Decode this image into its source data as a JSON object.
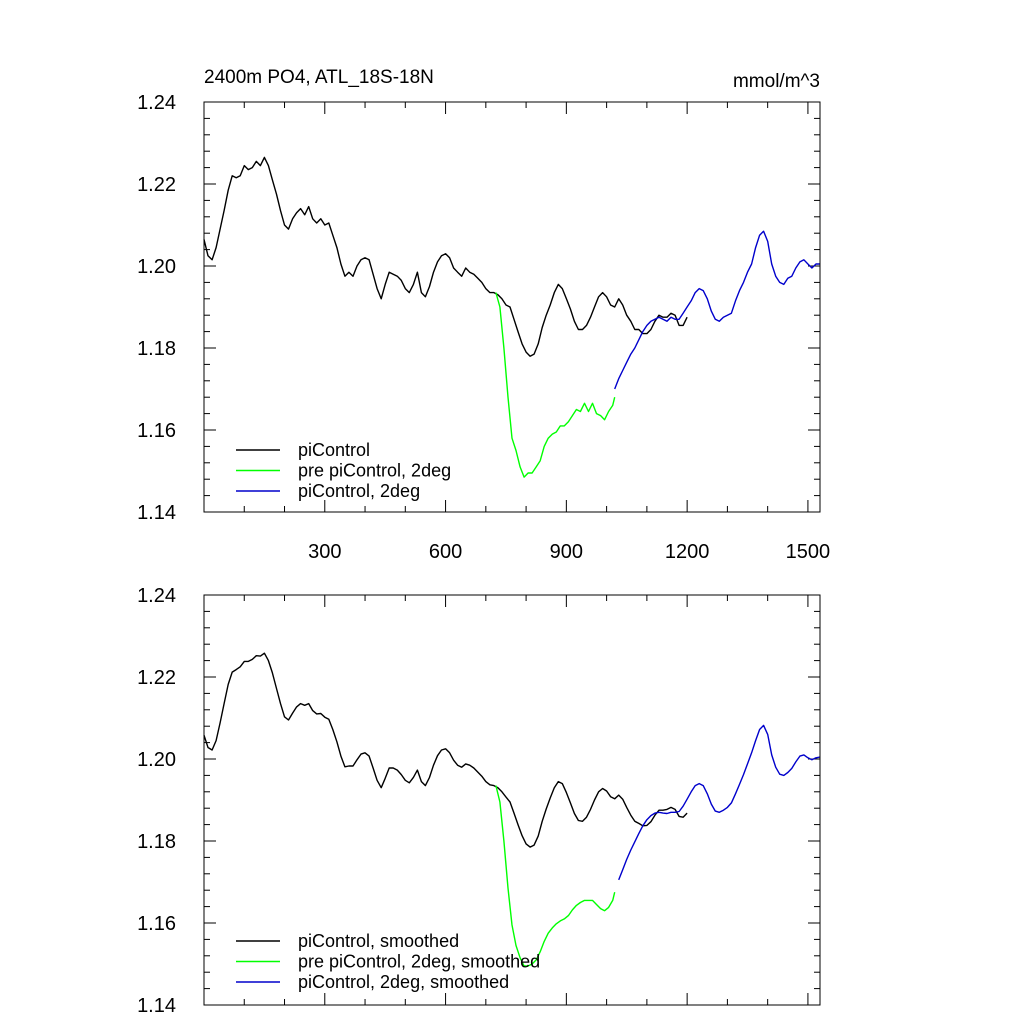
{
  "chart_data": [
    {
      "type": "line",
      "title": "2400m PO4, ATL_18S-18N",
      "units": "mmol/m^3",
      "xlim": [
        0,
        1530
      ],
      "ylim": [
        1.14,
        1.24
      ],
      "xticks": [
        300,
        600,
        900,
        1200,
        1500
      ],
      "xtick_labels": [
        "300",
        "600",
        "900",
        "1200",
        "1500"
      ],
      "yticks": [
        1.14,
        1.16,
        1.18,
        1.2,
        1.22,
        1.24
      ],
      "ytick_labels": [
        "1.14",
        "1.16",
        "1.18",
        "1.20",
        "1.22",
        "1.24"
      ],
      "grid": false,
      "legend_position": "bottom-left",
      "series": [
        {
          "name": "piControl",
          "color": "#000000",
          "x": [
            0,
            10,
            20,
            30,
            40,
            50,
            60,
            70,
            80,
            90,
            100,
            110,
            120,
            130,
            140,
            150,
            160,
            170,
            180,
            190,
            200,
            210,
            220,
            230,
            240,
            250,
            260,
            270,
            280,
            290,
            300,
            310,
            320,
            330,
            340,
            350,
            360,
            370,
            380,
            390,
            400,
            410,
            420,
            430,
            440,
            450,
            460,
            470,
            480,
            490,
            500,
            510,
            520,
            530,
            540,
            550,
            560,
            570,
            580,
            590,
            600,
            610,
            620,
            630,
            640,
            650,
            660,
            670,
            680,
            690,
            700,
            710,
            720,
            730,
            740,
            750,
            760,
            770,
            780,
            790,
            800,
            810,
            820,
            830,
            840,
            850,
            860,
            870,
            880,
            890,
            900,
            910,
            920,
            930,
            940,
            950,
            960,
            970,
            980,
            990,
            1000,
            1010,
            1020,
            1030,
            1040,
            1050,
            1060,
            1070,
            1080,
            1090,
            1100,
            1110,
            1120,
            1130,
            1140,
            1150,
            1160,
            1170,
            1180,
            1190,
            1200
          ],
          "y": [
            1.2065,
            1.2025,
            1.2015,
            1.2045,
            1.209,
            1.2135,
            1.2185,
            1.222,
            1.2215,
            1.222,
            1.2245,
            1.2235,
            1.224,
            1.2255,
            1.2245,
            1.2265,
            1.2245,
            1.221,
            1.2175,
            1.2135,
            1.21,
            1.209,
            1.2115,
            1.213,
            1.214,
            1.2125,
            1.2145,
            1.2115,
            1.2105,
            1.2115,
            1.21,
            1.2105,
            1.2075,
            1.2045,
            1.2005,
            1.1975,
            1.1985,
            1.1975,
            1.2,
            1.2015,
            1.202,
            1.2015,
            1.198,
            1.1945,
            1.192,
            1.1955,
            1.1985,
            1.198,
            1.1975,
            1.1965,
            1.1945,
            1.1935,
            1.1955,
            1.1985,
            1.1935,
            1.1925,
            1.195,
            1.1985,
            1.201,
            1.2025,
            1.203,
            1.202,
            1.1995,
            1.1985,
            1.1975,
            1.1995,
            1.1985,
            1.198,
            1.197,
            1.196,
            1.1945,
            1.1935,
            1.1935,
            1.193,
            1.192,
            1.1905,
            1.19,
            1.187,
            1.184,
            1.181,
            1.179,
            1.178,
            1.1785,
            1.181,
            1.185,
            1.188,
            1.1905,
            1.1935,
            1.1955,
            1.1945,
            1.192,
            1.1895,
            1.1865,
            1.1845,
            1.1845,
            1.1855,
            1.1875,
            1.19,
            1.1925,
            1.1935,
            1.1925,
            1.1905,
            1.19,
            1.192,
            1.1905,
            1.188,
            1.1865,
            1.1845,
            1.1845,
            1.1835,
            1.1835,
            1.1845,
            1.1865,
            1.188,
            1.1875,
            1.1875,
            1.1885,
            1.188,
            1.1855,
            1.1855,
            1.1875
          ]
        },
        {
          "name": "pre piControl, 2deg",
          "color": "#00ff00",
          "x": [
            725,
            735,
            745,
            755,
            765,
            775,
            785,
            795,
            805,
            815,
            825,
            835,
            845,
            855,
            865,
            875,
            885,
            895,
            905,
            915,
            925,
            935,
            945,
            955,
            965,
            975,
            985,
            995,
            1005,
            1015,
            1020
          ],
          "y": [
            1.1935,
            1.19,
            1.18,
            1.168,
            1.158,
            1.155,
            1.151,
            1.1485,
            1.1495,
            1.1495,
            1.151,
            1.1525,
            1.156,
            1.158,
            1.159,
            1.1595,
            1.161,
            1.161,
            1.162,
            1.1635,
            1.165,
            1.1645,
            1.1665,
            1.1645,
            1.1665,
            1.164,
            1.1635,
            1.1625,
            1.1645,
            1.166,
            1.168
          ]
        },
        {
          "name": "piControl, 2deg",
          "color": "#0000cc",
          "x": [
            1020,
            1030,
            1040,
            1050,
            1060,
            1070,
            1080,
            1090,
            1100,
            1110,
            1120,
            1130,
            1140,
            1150,
            1160,
            1170,
            1180,
            1190,
            1200,
            1210,
            1220,
            1230,
            1240,
            1250,
            1260,
            1270,
            1280,
            1290,
            1300,
            1310,
            1320,
            1330,
            1340,
            1350,
            1360,
            1370,
            1380,
            1390,
            1400,
            1410,
            1420,
            1430,
            1440,
            1450,
            1460,
            1470,
            1480,
            1490,
            1500,
            1510,
            1520,
            1530
          ],
          "y": [
            1.17,
            1.1725,
            1.1745,
            1.1765,
            1.1785,
            1.18,
            1.182,
            1.184,
            1.1855,
            1.1865,
            1.187,
            1.1875,
            1.187,
            1.1865,
            1.1875,
            1.187,
            1.187,
            1.1885,
            1.19,
            1.1915,
            1.1935,
            1.1945,
            1.194,
            1.192,
            1.189,
            1.187,
            1.1865,
            1.1875,
            1.188,
            1.1885,
            1.1915,
            1.194,
            1.196,
            1.1985,
            1.2005,
            1.2045,
            1.2075,
            1.2085,
            1.206,
            1.2005,
            1.1975,
            1.196,
            1.1955,
            1.197,
            1.1975,
            1.1995,
            1.201,
            1.2015,
            1.2005,
            1.1995,
            1.2005,
            1.2005
          ]
        }
      ]
    },
    {
      "type": "line",
      "title": "",
      "units": "",
      "xlim": [
        0,
        1530
      ],
      "ylim": [
        1.14,
        1.24
      ],
      "xticks": [
        300,
        600,
        900,
        1200,
        1500
      ],
      "xtick_labels": [],
      "yticks": [
        1.14,
        1.16,
        1.18,
        1.2,
        1.22,
        1.24
      ],
      "ytick_labels": [
        "1.14",
        "1.16",
        "1.18",
        "1.20",
        "1.22",
        "1.24"
      ],
      "grid": false,
      "legend_position": "bottom-left",
      "series": [
        {
          "name": "piControl, smoothed",
          "color": "#000000",
          "x": [
            0,
            10,
            20,
            30,
            40,
            50,
            60,
            70,
            80,
            90,
            100,
            110,
            120,
            130,
            140,
            150,
            160,
            170,
            180,
            190,
            200,
            210,
            220,
            230,
            240,
            250,
            260,
            270,
            280,
            290,
            300,
            310,
            320,
            330,
            340,
            350,
            360,
            370,
            380,
            390,
            400,
            410,
            420,
            430,
            440,
            450,
            460,
            470,
            480,
            490,
            500,
            510,
            520,
            530,
            540,
            550,
            560,
            570,
            580,
            590,
            600,
            610,
            620,
            630,
            640,
            650,
            660,
            670,
            680,
            690,
            700,
            710,
            720,
            730,
            740,
            750,
            760,
            770,
            780,
            790,
            800,
            810,
            820,
            830,
            840,
            850,
            860,
            870,
            880,
            890,
            900,
            910,
            920,
            930,
            940,
            950,
            960,
            970,
            980,
            990,
            1000,
            1010,
            1020,
            1030,
            1040,
            1050,
            1060,
            1070,
            1080,
            1090,
            1100,
            1110,
            1120,
            1130,
            1140,
            1150,
            1160,
            1170,
            1180,
            1190,
            1200
          ],
          "y": [
            1.2058,
            1.2028,
            1.2022,
            1.2045,
            1.2088,
            1.2135,
            1.2182,
            1.2212,
            1.2218,
            1.2225,
            1.2238,
            1.2238,
            1.2243,
            1.2252,
            1.2251,
            1.2258,
            1.224,
            1.221,
            1.2172,
            1.2135,
            1.2103,
            1.2095,
            1.2112,
            1.2127,
            1.2135,
            1.2131,
            1.2135,
            1.2118,
            1.211,
            1.2111,
            1.2102,
            1.2097,
            1.2072,
            1.2042,
            1.2007,
            1.1981,
            1.1983,
            1.1983,
            1.1998,
            1.2012,
            1.2015,
            1.2007,
            1.1978,
            1.1948,
            1.193,
            1.1953,
            1.1978,
            1.1978,
            1.1973,
            1.1962,
            1.1948,
            1.1942,
            1.1955,
            1.1973,
            1.1945,
            1.1935,
            1.1955,
            1.1985,
            1.2008,
            1.2022,
            1.2025,
            1.2015,
            1.1997,
            1.1985,
            1.198,
            1.1988,
            1.1985,
            1.1978,
            1.1968,
            1.1958,
            1.1945,
            1.1937,
            1.1935,
            1.193,
            1.192,
            1.1907,
            1.1895,
            1.1868,
            1.184,
            1.1813,
            1.1793,
            1.1785,
            1.179,
            1.1812,
            1.1848,
            1.1878,
            1.1905,
            1.193,
            1.1945,
            1.194,
            1.1918,
            1.1893,
            1.1867,
            1.185,
            1.1848,
            1.1858,
            1.1877,
            1.19,
            1.192,
            1.1928,
            1.1922,
            1.1908,
            1.1903,
            1.1912,
            1.1902,
            1.1882,
            1.1863,
            1.1848,
            1.1843,
            1.1837,
            1.1838,
            1.1847,
            1.1863,
            1.1875,
            1.1875,
            1.1877,
            1.1882,
            1.1877,
            1.186,
            1.1858,
            1.1868
          ]
        },
        {
          "name": "pre piControl, 2deg, smoothed",
          "color": "#00ff00",
          "x": [
            725,
            735,
            745,
            755,
            765,
            775,
            785,
            795,
            805,
            815,
            825,
            835,
            845,
            855,
            865,
            875,
            885,
            895,
            905,
            915,
            925,
            935,
            945,
            955,
            965,
            975,
            985,
            995,
            1005,
            1015,
            1020
          ],
          "y": [
            1.1935,
            1.1895,
            1.18,
            1.1685,
            1.1595,
            1.1545,
            1.1515,
            1.1495,
            1.1495,
            1.15,
            1.151,
            1.153,
            1.1555,
            1.1575,
            1.1588,
            1.1598,
            1.1605,
            1.161,
            1.1618,
            1.1632,
            1.1643,
            1.165,
            1.1655,
            1.1655,
            1.1655,
            1.1645,
            1.1635,
            1.163,
            1.1638,
            1.1655,
            1.1675
          ]
        },
        {
          "name": "piControl, 2deg, smoothed",
          "color": "#0000cc",
          "x": [
            1030,
            1040,
            1050,
            1060,
            1070,
            1080,
            1090,
            1100,
            1110,
            1120,
            1130,
            1140,
            1150,
            1160,
            1170,
            1180,
            1190,
            1200,
            1210,
            1220,
            1230,
            1240,
            1250,
            1260,
            1270,
            1280,
            1290,
            1300,
            1310,
            1320,
            1330,
            1340,
            1350,
            1360,
            1370,
            1380,
            1390,
            1400,
            1410,
            1420,
            1430,
            1440,
            1450,
            1460,
            1470,
            1480,
            1490,
            1500,
            1510,
            1520,
            1530
          ],
          "y": [
            1.1705,
            1.173,
            1.1755,
            1.1778,
            1.1798,
            1.1818,
            1.1837,
            1.1852,
            1.1862,
            1.1868,
            1.187,
            1.1868,
            1.1867,
            1.187,
            1.187,
            1.1872,
            1.1885,
            1.1902,
            1.192,
            1.1935,
            1.194,
            1.1935,
            1.1915,
            1.189,
            1.1873,
            1.187,
            1.1875,
            1.1882,
            1.1893,
            1.1915,
            1.1938,
            1.1962,
            1.1988,
            1.2015,
            1.2045,
            1.2072,
            1.2082,
            1.206,
            1.201,
            1.198,
            1.1963,
            1.196,
            1.1967,
            1.1977,
            1.1993,
            1.2007,
            1.201,
            1.2003,
            1.1998,
            1.2003,
            1.2005
          ]
        }
      ]
    }
  ]
}
